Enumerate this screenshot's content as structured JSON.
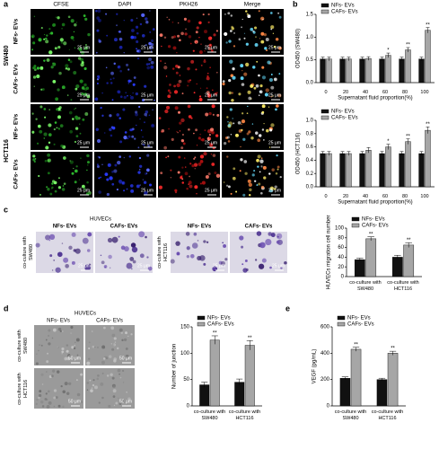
{
  "panel_labels": [
    "a",
    "b",
    "c",
    "d",
    "e"
  ],
  "figure_a": {
    "columns": [
      "CFSE",
      "DAPI",
      "PKH26",
      "Merge"
    ],
    "groups": [
      {
        "name": "SW480",
        "rows": [
          "NFs- EVs",
          "CAFs- EVs"
        ]
      },
      {
        "name": "HCT116",
        "rows": [
          "NFs- EVs",
          "CAFs- EVs"
        ]
      }
    ],
    "scale_bar": "25 μm"
  },
  "figure_c": {
    "title": "HUVECs",
    "columns": [
      "NFs- EVs",
      "CAFs- EVs"
    ],
    "rows": [
      "co-culture with SW480",
      "co-culture with HCT116"
    ],
    "scale_bar": "25 μm"
  },
  "figure_d": {
    "title": "HUVECs",
    "columns": [
      "NFs- EVs",
      "CAFs- EVs"
    ],
    "rows": [
      "co-culture with SW480",
      "co-culture with HCT116"
    ],
    "scale_bar": "50 μm"
  },
  "chart_data": [
    {
      "type": "bar",
      "ylabel": "OD450 (SW480)",
      "xlabel": "Supernatant fluid proportion(%)",
      "categories": [
        "0",
        "20",
        "40",
        "60",
        "80",
        "100"
      ],
      "series": [
        {
          "name": "NFs- EVs",
          "color": "#111111",
          "values": [
            0.52,
            0.52,
            0.52,
            0.52,
            0.52,
            0.52
          ],
          "errors": [
            0.04,
            0.04,
            0.04,
            0.04,
            0.04,
            0.04
          ]
        },
        {
          "name": "CAFs- EVs",
          "color": "#a6a6a6",
          "values": [
            0.52,
            0.52,
            0.53,
            0.6,
            0.72,
            1.15
          ],
          "errors": [
            0.04,
            0.04,
            0.04,
            0.05,
            0.05,
            0.06
          ],
          "significance": [
            null,
            null,
            null,
            "*",
            "**",
            "**"
          ]
        }
      ],
      "ylim": [
        0,
        1.5
      ],
      "yticks": [
        {
          "value": 0,
          "label": "0.0"
        },
        0.5,
        {
          "value": 1,
          "label": "1.0"
        },
        1.5
      ],
      "grid": false,
      "legend": "top-left"
    },
    {
      "type": "bar",
      "ylabel": "OD450 (HCT116)",
      "xlabel": "Supernatant fluid proportion(%)",
      "categories": [
        "0",
        "20",
        "40",
        "60",
        "80",
        "100"
      ],
      "series": [
        {
          "name": "NFs- EVs",
          "color": "#111111",
          "values": [
            0.5,
            0.5,
            0.5,
            0.5,
            0.5,
            0.5
          ],
          "errors": [
            0.03,
            0.03,
            0.03,
            0.03,
            0.03,
            0.03
          ]
        },
        {
          "name": "CAFs- EVs",
          "color": "#a6a6a6",
          "values": [
            0.5,
            0.5,
            0.55,
            0.6,
            0.68,
            0.85
          ],
          "errors": [
            0.03,
            0.03,
            0.04,
            0.04,
            0.04,
            0.05
          ],
          "significance": [
            null,
            null,
            null,
            "*",
            "**",
            "**"
          ]
        }
      ],
      "ylim": [
        0,
        1
      ],
      "yticks": [
        {
          "value": 0,
          "label": "0.0"
        },
        0.2,
        0.4,
        0.6,
        0.8,
        {
          "value": 1,
          "label": "1.0"
        }
      ],
      "grid": false,
      "legend": "top-left"
    },
    {
      "type": "bar",
      "ylabel": "HUVECs migration cell number",
      "categories": [
        "co-culture with SW480",
        "co-culture with HCT116"
      ],
      "series": [
        {
          "name": "NFs- EVs",
          "color": "#111111",
          "values": [
            35,
            40
          ],
          "errors": [
            3,
            4
          ]
        },
        {
          "name": "CAFs- EVs",
          "color": "#a6a6a6",
          "values": [
            78,
            65
          ],
          "errors": [
            4,
            5
          ],
          "significance": [
            "**",
            "**"
          ]
        }
      ],
      "ylim": [
        0,
        100
      ],
      "yticks": [
        0,
        20,
        40,
        60,
        80,
        100
      ],
      "grid": false,
      "legend": "top-left"
    },
    {
      "type": "bar",
      "ylabel": "Number of junction",
      "categories": [
        "co-culture with SW480",
        "co-culture with HCT116"
      ],
      "series": [
        {
          "name": "NFs- EVs",
          "color": "#111111",
          "values": [
            40,
            45
          ],
          "errors": [
            5,
            6
          ]
        },
        {
          "name": "CAFs- EVs",
          "color": "#a6a6a6",
          "values": [
            125,
            115
          ],
          "errors": [
            8,
            9
          ],
          "significance": [
            "**",
            "**"
          ]
        }
      ],
      "ylim": [
        0,
        150
      ],
      "yticks": [
        0,
        50,
        100,
        150
      ],
      "grid": false,
      "legend": "top-left"
    },
    {
      "type": "bar",
      "ylabel": "VEGF (pg/mL)",
      "categories": [
        "co-culture with SW480",
        "co-culture with HCT116"
      ],
      "series": [
        {
          "name": "NFs- EVs",
          "color": "#111111",
          "values": [
            210,
            200
          ],
          "errors": [
            10,
            10
          ]
        },
        {
          "name": "CAFs- EVs",
          "color": "#a6a6a6",
          "values": [
            430,
            400
          ],
          "errors": [
            15,
            15
          ],
          "significance": [
            "**",
            "**"
          ]
        }
      ],
      "ylim": [
        0,
        600
      ],
      "yticks": [
        0,
        200,
        400,
        600
      ],
      "grid": false,
      "legend": "top-left"
    }
  ]
}
